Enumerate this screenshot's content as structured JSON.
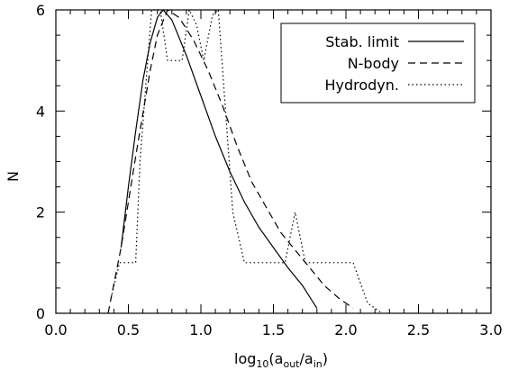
{
  "chart_data": {
    "type": "line",
    "xlabel": {
      "prefix": "log",
      "sub1": "10",
      "open": "(a",
      "sub2": "out",
      "mid": "/a",
      "sub3": "in",
      "close": ")"
    },
    "ylabel": "N",
    "xlim": [
      0.0,
      3.0
    ],
    "ylim": [
      0,
      6
    ],
    "xticks": [
      0.0,
      0.5,
      1.0,
      1.5,
      2.0,
      2.5,
      3.0
    ],
    "xtick_labels": [
      "0.0",
      "0.5",
      "1.0",
      "1.5",
      "2.0",
      "2.5",
      "3.0"
    ],
    "yticks": [
      0,
      2,
      4,
      6
    ],
    "ytick_labels": [
      "0",
      "2",
      "4",
      "6"
    ],
    "legend_position": "top-right",
    "series": [
      {
        "name": "Stab. limit",
        "style": "solid",
        "points": [
          [
            0.45,
            1.3
          ],
          [
            0.5,
            2.5
          ],
          [
            0.55,
            3.6
          ],
          [
            0.6,
            4.6
          ],
          [
            0.65,
            5.35
          ],
          [
            0.7,
            5.85
          ],
          [
            0.74,
            6.0
          ],
          [
            0.8,
            5.8
          ],
          [
            0.9,
            5.1
          ],
          [
            1.0,
            4.3
          ],
          [
            1.1,
            3.5
          ],
          [
            1.2,
            2.8
          ],
          [
            1.3,
            2.2
          ],
          [
            1.4,
            1.7
          ],
          [
            1.5,
            1.3
          ],
          [
            1.6,
            0.9
          ],
          [
            1.7,
            0.55
          ],
          [
            1.8,
            0.1
          ]
        ]
      },
      {
        "name": "N-body",
        "style": "dashed",
        "points": [
          [
            0.36,
            0.0
          ],
          [
            0.45,
            1.3
          ],
          [
            0.55,
            3.1
          ],
          [
            0.65,
            4.8
          ],
          [
            0.7,
            5.5
          ],
          [
            0.77,
            6.0
          ],
          [
            0.85,
            5.85
          ],
          [
            0.95,
            5.4
          ],
          [
            1.05,
            4.8
          ],
          [
            1.15,
            4.1
          ],
          [
            1.25,
            3.3
          ],
          [
            1.35,
            2.6
          ],
          [
            1.45,
            2.1
          ],
          [
            1.55,
            1.6
          ],
          [
            1.65,
            1.25
          ],
          [
            1.75,
            0.9
          ],
          [
            1.85,
            0.55
          ],
          [
            1.95,
            0.3
          ],
          [
            2.05,
            0.1
          ]
        ]
      },
      {
        "name": "Hydrodyn.",
        "style": "dotted",
        "points": [
          [
            0.38,
            0.3
          ],
          [
            0.44,
            1.0
          ],
          [
            0.55,
            1.0
          ],
          [
            0.58,
            3.0
          ],
          [
            0.62,
            4.5
          ],
          [
            0.66,
            6.0
          ],
          [
            0.72,
            6.0
          ],
          [
            0.77,
            5.0
          ],
          [
            0.87,
            5.0
          ],
          [
            0.92,
            6.0
          ],
          [
            0.97,
            5.7
          ],
          [
            1.02,
            5.0
          ],
          [
            1.08,
            5.9
          ],
          [
            1.12,
            6.0
          ],
          [
            1.17,
            4.0
          ],
          [
            1.22,
            2.0
          ],
          [
            1.3,
            1.0
          ],
          [
            1.48,
            1.0
          ],
          [
            1.58,
            1.0
          ],
          [
            1.65,
            2.0
          ],
          [
            1.72,
            1.0
          ],
          [
            2.05,
            1.0
          ],
          [
            2.15,
            0.2
          ],
          [
            2.25,
            0.0
          ]
        ]
      }
    ]
  }
}
